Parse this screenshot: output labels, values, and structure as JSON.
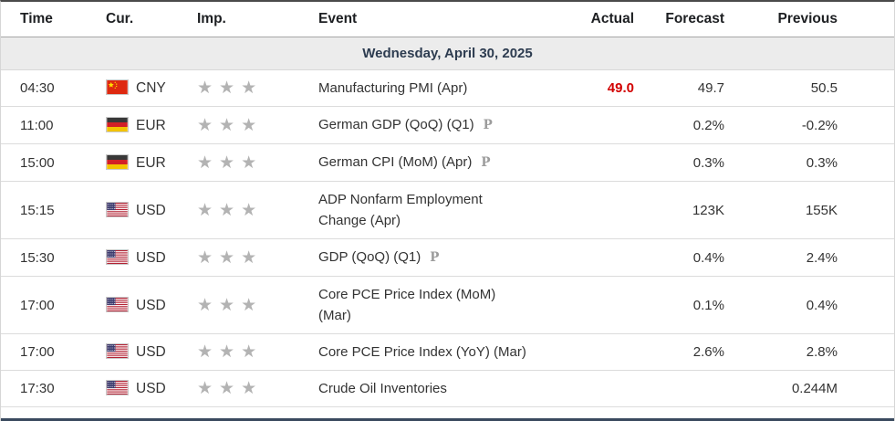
{
  "header": {
    "columns": [
      "Time",
      "Cur.",
      "Imp.",
      "Event",
      "Actual",
      "Forecast",
      "Previous"
    ]
  },
  "date_row": {
    "label": "Wednesday, April 30, 2025"
  },
  "rows": [
    {
      "time": "04:30",
      "currency": "CNY",
      "flag": "cn",
      "importance": 3,
      "event": "Manufacturing PMI (Apr)",
      "preliminary": false,
      "actual": "49.0",
      "forecast": "49.7",
      "previous": "50.5"
    },
    {
      "time": "11:00",
      "currency": "EUR",
      "flag": "de",
      "importance": 3,
      "event": "German GDP (QoQ) (Q1)",
      "preliminary": true,
      "actual": "",
      "forecast": "0.2%",
      "previous": "-0.2%"
    },
    {
      "time": "15:00",
      "currency": "EUR",
      "flag": "de",
      "importance": 3,
      "event": "German CPI (MoM) (Apr)",
      "preliminary": true,
      "actual": "",
      "forecast": "0.3%",
      "previous": "0.3%"
    },
    {
      "time": "15:15",
      "currency": "USD",
      "flag": "us",
      "importance": 3,
      "event": "ADP Nonfarm Employment Change (Apr)",
      "preliminary": false,
      "actual": "",
      "forecast": "123K",
      "previous": "155K"
    },
    {
      "time": "15:30",
      "currency": "USD",
      "flag": "us",
      "importance": 3,
      "event": "GDP (QoQ) (Q1)",
      "preliminary": true,
      "actual": "",
      "forecast": "0.4%",
      "previous": "2.4%"
    },
    {
      "time": "17:00",
      "currency": "USD",
      "flag": "us",
      "importance": 3,
      "event": "Core PCE Price Index (MoM) (Mar)",
      "preliminary": false,
      "actual": "",
      "forecast": "0.1%",
      "previous": "0.4%"
    },
    {
      "time": "17:00",
      "currency": "USD",
      "flag": "us",
      "importance": 3,
      "event": "Core PCE Price Index (YoY) (Mar)",
      "preliminary": false,
      "actual": "",
      "forecast": "2.6%",
      "previous": "2.8%"
    },
    {
      "time": "17:30",
      "currency": "USD",
      "flag": "us",
      "importance": 3,
      "event": "Crude Oil Inventories",
      "preliminary": false,
      "actual": "",
      "forecast": "",
      "previous": "0.244M"
    }
  ],
  "icons": {
    "star": "★",
    "preliminary": "P"
  },
  "colors": {
    "actual_negative": "#d20000",
    "forecast_text": "#5e5e5e",
    "previous_text": "#111111",
    "date_text": "#2d3c50",
    "star": "#b3b3b3"
  }
}
